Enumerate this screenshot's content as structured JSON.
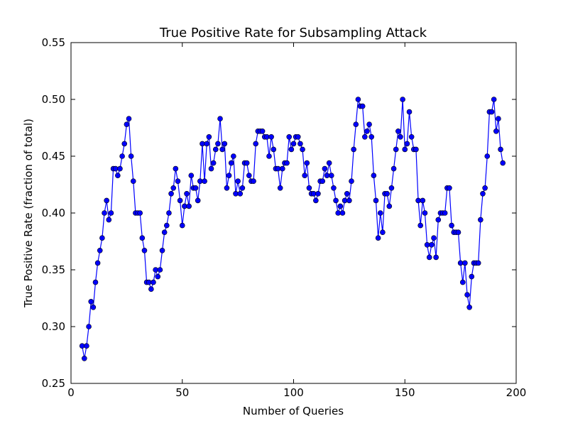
{
  "chart_data": {
    "type": "line",
    "title": "True Positive Rate for Subsampling Attack",
    "x_label": "Number of Queries",
    "y_label": "True Positive Rate (fraction of total)",
    "xlim": [
      0,
      200
    ],
    "xticks": [
      0,
      50,
      100,
      150,
      200
    ],
    "ylim": [
      0.25,
      0.55
    ],
    "yticks": [
      0.25,
      {
        "value": 0.3,
        "label": "0.30"
      },
      0.35,
      {
        "value": 0.4,
        "label": "0.40"
      },
      0.45,
      {
        "value": 0.5,
        "label": "0.50"
      },
      0.55
    ],
    "grid": false,
    "x": [
      5,
      6,
      7,
      8,
      9,
      10,
      11,
      12,
      13,
      14,
      15,
      16,
      17,
      18,
      19,
      20,
      21,
      22,
      23,
      24,
      25,
      26,
      27,
      28,
      29,
      30,
      31,
      32,
      33,
      34,
      35,
      36,
      37,
      38,
      39,
      40,
      41,
      42,
      43,
      44,
      45,
      46,
      47,
      48,
      49,
      50,
      51,
      52,
      53,
      54,
      55,
      56,
      57,
      58,
      59,
      60,
      61,
      62,
      63,
      64,
      65,
      66,
      67,
      68,
      69,
      70,
      71,
      72,
      73,
      74,
      75,
      76,
      77,
      78,
      79,
      80,
      81,
      82,
      83,
      84,
      85,
      86,
      87,
      88,
      89,
      90,
      91,
      92,
      93,
      94,
      95,
      96,
      97,
      98,
      99,
      100,
      101,
      102,
      103,
      104,
      105,
      106,
      107,
      108,
      109,
      110,
      111,
      112,
      113,
      114,
      115,
      116,
      117,
      118,
      119,
      120,
      121,
      122,
      123,
      124,
      125,
      126,
      127,
      128,
      129,
      130,
      131,
      132,
      133,
      134,
      135,
      136,
      137,
      138,
      139,
      140,
      141,
      142,
      143,
      144,
      145,
      146,
      147,
      148,
      149,
      150,
      151,
      152,
      153,
      154,
      155,
      156,
      157,
      158,
      159,
      160,
      161,
      162,
      163,
      164,
      165,
      166,
      167,
      168,
      169,
      170,
      171,
      172,
      173,
      174,
      175,
      176,
      177,
      178,
      179,
      180,
      181,
      182,
      183,
      184,
      185,
      186,
      187,
      188,
      189,
      190,
      191,
      192,
      193,
      194
    ],
    "series": [
      {
        "name": "True Positive Rate",
        "color": "#0000ff",
        "values": [
          0.283,
          0.272,
          0.283,
          0.3,
          0.322,
          0.317,
          0.339,
          0.356,
          0.367,
          0.378,
          0.4,
          0.411,
          0.394,
          0.4,
          0.439,
          0.439,
          0.433,
          0.439,
          0.45,
          0.461,
          0.478,
          0.483,
          0.45,
          0.428,
          0.4,
          0.4,
          0.4,
          0.378,
          0.367,
          0.339,
          0.339,
          0.333,
          0.339,
          0.35,
          0.344,
          0.35,
          0.367,
          0.383,
          0.389,
          0.4,
          0.417,
          0.422,
          0.439,
          0.428,
          0.411,
          0.389,
          0.406,
          0.417,
          0.406,
          0.433,
          0.422,
          0.422,
          0.411,
          0.428,
          0.461,
          0.428,
          0.461,
          0.467,
          0.439,
          0.444,
          0.456,
          0.461,
          0.483,
          0.456,
          0.461,
          0.422,
          0.433,
          0.444,
          0.45,
          0.417,
          0.428,
          0.417,
          0.422,
          0.444,
          0.444,
          0.433,
          0.428,
          0.428,
          0.461,
          0.472,
          0.472,
          0.472,
          0.467,
          0.467,
          0.45,
          0.467,
          0.456,
          0.439,
          0.439,
          0.422,
          0.439,
          0.444,
          0.444,
          0.467,
          0.456,
          0.461,
          0.467,
          0.467,
          0.461,
          0.456,
          0.433,
          0.444,
          0.422,
          0.417,
          0.417,
          0.411,
          0.417,
          0.428,
          0.428,
          0.439,
          0.433,
          0.444,
          0.433,
          0.422,
          0.411,
          0.4,
          0.406,
          0.4,
          0.411,
          0.417,
          0.411,
          0.428,
          0.456,
          0.478,
          0.5,
          0.494,
          0.494,
          0.467,
          0.472,
          0.478,
          0.467,
          0.433,
          0.411,
          0.378,
          0.4,
          0.383,
          0.417,
          0.417,
          0.406,
          0.422,
          0.439,
          0.456,
          0.472,
          0.467,
          0.5,
          0.456,
          0.461,
          0.489,
          0.467,
          0.456,
          0.456,
          0.411,
          0.389,
          0.411,
          0.4,
          0.372,
          0.361,
          0.372,
          0.378,
          0.361,
          0.394,
          0.4,
          0.4,
          0.4,
          0.422,
          0.422,
          0.389,
          0.383,
          0.383,
          0.383,
          0.356,
          0.339,
          0.356,
          0.328,
          0.317,
          0.344,
          0.356,
          0.356,
          0.356,
          0.394,
          0.417,
          0.422,
          0.45,
          0.489,
          0.489,
          0.5,
          0.472,
          0.483,
          0.456,
          0.444
        ]
      }
    ]
  }
}
